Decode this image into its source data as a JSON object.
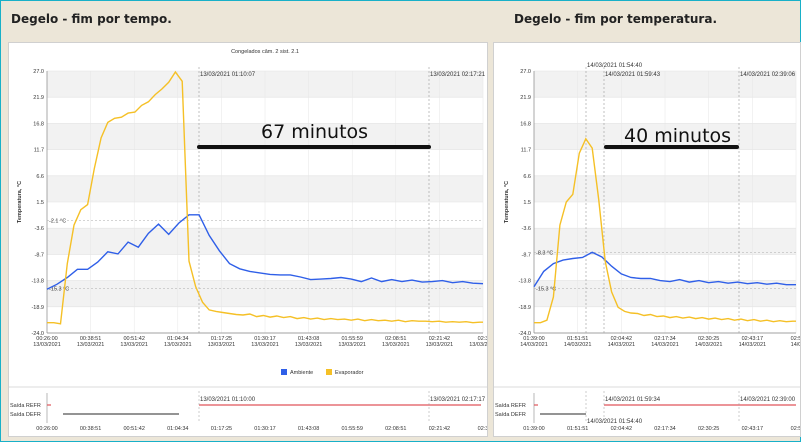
{
  "headings": {
    "left": "Degelo - fim por tempo.",
    "right": "Degelo - fim por temperatura."
  },
  "colors": {
    "ambiente": "#2f5fe8",
    "evaporador": "#f5c026",
    "frame": "#18b0c8",
    "refr_line": "#e0555a",
    "defr_line": "#555555"
  },
  "chart_data": [
    {
      "type": "line",
      "title": "Congelados câm. 2 sist. 2.1",
      "ylabel": "Temperatura, °C",
      "ylim": [
        -24.0,
        27.0
      ],
      "yticks": [
        "27.0",
        "21.9",
        "16.8",
        "11.7",
        "6.6",
        "1.5",
        "-3.6",
        "-8.7",
        "-13.8",
        "-18.9",
        "-24.0"
      ],
      "xticks": [
        {
          "time": "00:26:00",
          "date": "13/03/2021"
        },
        {
          "time": "00:38:51",
          "date": "13/03/2021"
        },
        {
          "time": "00:51:42",
          "date": "13/03/2021"
        },
        {
          "time": "01:04:34",
          "date": "13/03/2021"
        },
        {
          "time": "01:17:25",
          "date": "13/03/2021"
        },
        {
          "time": "01:30:17",
          "date": "13/03/2021"
        },
        {
          "time": "01:43:08",
          "date": "13/03/2021"
        },
        {
          "time": "01:55:59",
          "date": "13/03/2021"
        },
        {
          "time": "02:08:51",
          "date": "13/03/2021"
        },
        {
          "time": "02:21:42",
          "date": "13/03/2021"
        },
        {
          "time": "02:3",
          "date": "13/03/2021"
        }
      ],
      "cursor_labels": [
        "13/03/2021 01:10:07",
        "13/03/2021 02:17:21"
      ],
      "ref_labels": [
        "-2.1 °C",
        "-15.3 °C"
      ],
      "annotation": "67 minutos",
      "legend": [
        "Ambiente",
        "Evaporador"
      ],
      "legend_position": "bottom-center",
      "series": [
        {
          "name": "Ambiente",
          "x": [
            0,
            3,
            6,
            9,
            12,
            15,
            18,
            21,
            24,
            27,
            30,
            33,
            36,
            39,
            42,
            45,
            48,
            51,
            54,
            57,
            60,
            63,
            66,
            69,
            72,
            75,
            78,
            81,
            84,
            87,
            90,
            93,
            96,
            99,
            102,
            105,
            108,
            111,
            114,
            117,
            120,
            123,
            126,
            129
          ],
          "y": [
            -15.5,
            -14.5,
            -13.2,
            -11.6,
            -11.6,
            -10.2,
            -8.2,
            -8.6,
            -6.3,
            -7.3,
            -4.6,
            -2.8,
            -4.8,
            -2.6,
            -1.0,
            -1.0,
            -5.0,
            -8.0,
            -10.5,
            -11.5,
            -12.0,
            -12.3,
            -12.6,
            -12.7,
            -12.7,
            -13.1,
            -13.6,
            -13.5,
            -13.4,
            -13.2,
            -13.5,
            -14.0,
            -13.3,
            -14.0,
            -13.6,
            -14.0,
            -13.7,
            -14.1,
            -14.0,
            -13.8,
            -14.2,
            -14.0,
            -14.3,
            -14.4
          ]
        },
        {
          "name": "Evaporador",
          "x": [
            0,
            2,
            4,
            6,
            8,
            10,
            12,
            14,
            16,
            18,
            20,
            22,
            24,
            26,
            28,
            30,
            32,
            34,
            36,
            38,
            40,
            42,
            44,
            46,
            48,
            50,
            52,
            54,
            56,
            58,
            60,
            62,
            64,
            66,
            68,
            70,
            72,
            74,
            76,
            78,
            80,
            82,
            84,
            86,
            88,
            90,
            92,
            94,
            96,
            98,
            100,
            102,
            104,
            106,
            108,
            110,
            112,
            114,
            116,
            118,
            120,
            122,
            124,
            126,
            128,
            129
          ],
          "y": [
            -22.0,
            -22.0,
            -22.2,
            -10.5,
            -3.0,
            0.0,
            1.0,
            8.0,
            14.0,
            17.0,
            17.8,
            18.0,
            18.8,
            19.0,
            20.3,
            21.0,
            22.4,
            23.5,
            24.8,
            26.8,
            25.0,
            -10.0,
            -15.0,
            -18.0,
            -19.5,
            -19.8,
            -20.0,
            -20.2,
            -20.4,
            -20.5,
            -20.3,
            -20.8,
            -20.6,
            -20.9,
            -20.7,
            -21.0,
            -20.8,
            -21.2,
            -21.0,
            -21.3,
            -21.1,
            -21.4,
            -21.2,
            -21.4,
            -21.3,
            -21.5,
            -21.3,
            -21.6,
            -21.4,
            -21.6,
            -21.5,
            -21.7,
            -21.5,
            -21.8,
            -21.6,
            -21.7,
            -21.7,
            -21.8,
            -21.7,
            -21.9,
            -21.8,
            -21.9,
            -21.8,
            -22.0,
            -21.9,
            -21.9
          ]
        }
      ],
      "subchart": {
        "labels": [
          "Saída REFR",
          "Saída DEFR"
        ],
        "cursor_labels": [
          "13/03/2021 01:10:00",
          "13/03/2021 02:17:17"
        ],
        "xticks": [
          "00:26:00",
          "00:38:51",
          "00:51:42",
          "01:04:34",
          "01:17:25",
          "01:30:17",
          "01:43:08",
          "01:55:59",
          "02:08:51",
          "02:21:42",
          "02:3"
        ]
      }
    },
    {
      "type": "line",
      "title": "",
      "ylabel": "Temperatura, °C",
      "ylim": [
        -24.0,
        27.0
      ],
      "yticks": [
        "27.0",
        "21.9",
        "16.8",
        "11.7",
        "6.6",
        "1.5",
        "-3.6",
        "-8.7",
        "-13.8",
        "-18.9",
        "-24.0"
      ],
      "xticks": [
        {
          "time": "01:39:00",
          "date": "14/03/2021"
        },
        {
          "time": "01:51:51",
          "date": "14/03/2021"
        },
        {
          "time": "02:04:42",
          "date": "14/03/2021"
        },
        {
          "time": "02:17:34",
          "date": "14/03/2021"
        },
        {
          "time": "02:30:25",
          "date": "14/03/2021"
        },
        {
          "time": "02:43:17",
          "date": "14/03/2021"
        },
        {
          "time": "02:5",
          "date": "14/0"
        }
      ],
      "cursor_labels": [
        "14/03/2021 01:54:40",
        "14/03/2021 01:59:43",
        "14/03/2021 02:39:06"
      ],
      "ref_labels": [
        "-8.3 °C",
        "-15.3 °C"
      ],
      "annotation": "40 minutos",
      "series": [
        {
          "name": "Ambiente",
          "x": [
            0,
            3,
            6,
            9,
            12,
            15,
            18,
            21,
            24,
            27,
            30,
            33,
            36,
            39,
            42,
            45,
            48,
            51,
            54,
            57,
            60,
            63,
            66,
            69,
            72,
            75,
            78,
            81
          ],
          "y": [
            -15.0,
            -12.0,
            -10.5,
            -9.8,
            -9.5,
            -9.3,
            -8.3,
            -9.2,
            -11.0,
            -12.5,
            -13.2,
            -13.4,
            -13.4,
            -13.8,
            -14.0,
            -13.6,
            -14.1,
            -13.8,
            -14.2,
            -14.0,
            -14.3,
            -14.1,
            -14.4,
            -14.2,
            -14.5,
            -14.3,
            -14.6,
            -14.6
          ]
        },
        {
          "name": "Evaporador",
          "x": [
            0,
            2,
            4,
            6,
            8,
            10,
            12,
            14,
            16,
            18,
            20,
            22,
            24,
            26,
            28,
            30,
            32,
            34,
            36,
            38,
            40,
            42,
            44,
            46,
            48,
            50,
            52,
            54,
            56,
            58,
            60,
            62,
            64,
            66,
            68,
            70,
            72,
            74,
            76,
            78,
            80,
            81
          ],
          "y": [
            -22.0,
            -22.0,
            -21.5,
            -17.0,
            -3.0,
            1.5,
            3.0,
            11.0,
            13.8,
            12.0,
            2.0,
            -10.0,
            -16.0,
            -19.0,
            -19.8,
            -20.1,
            -20.2,
            -20.6,
            -20.4,
            -20.8,
            -20.7,
            -21.0,
            -20.8,
            -21.1,
            -20.9,
            -21.2,
            -21.0,
            -21.3,
            -21.1,
            -21.4,
            -21.2,
            -21.5,
            -21.3,
            -21.6,
            -21.4,
            -21.7,
            -21.5,
            -21.8,
            -21.6,
            -21.8,
            -21.7,
            -21.7
          ]
        }
      ],
      "subchart": {
        "labels": [
          "Saída REFR",
          "Saída DEFR"
        ],
        "cursor_labels": [
          "14/03/2021 01:59:34",
          "14/03/2021 02:39:00",
          "14/03/2021 01:54:40"
        ],
        "xticks": [
          "01:39:00",
          "01:51:51",
          "02:04:42",
          "02:17:34",
          "02:30:25",
          "02:43:17",
          "02:5"
        ]
      }
    }
  ]
}
